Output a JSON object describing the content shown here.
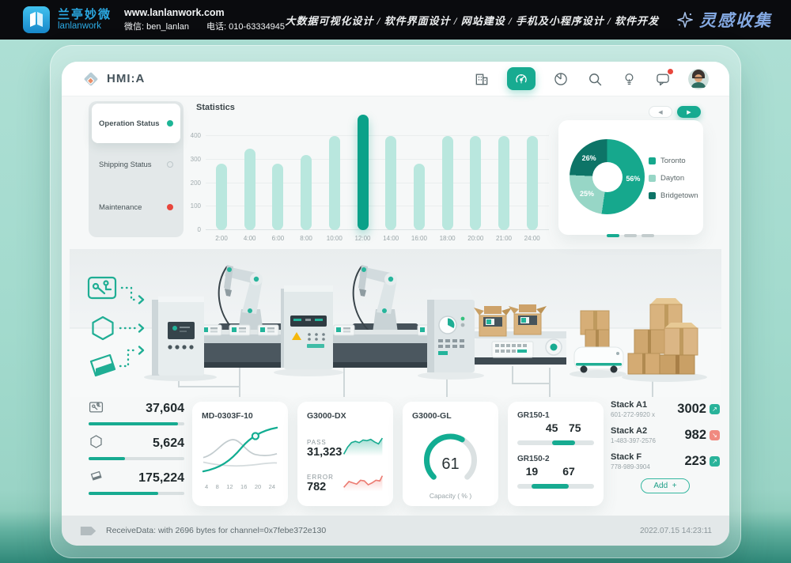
{
  "banner": {
    "brand_cn": "兰亭妙微",
    "brand_en": "lanlanwork",
    "website": "www.lanlanwork.com",
    "wechat": "微信: ben_lanlan",
    "phone": "电话: 010-63334945",
    "services": "大数据可视化设计 / 软件界面设计 / 网站建设 / 手机及小程序设计 / 软件开发",
    "collect": "灵感收集"
  },
  "header": {
    "logo_text": "HMI:A",
    "accent": "#17ab91",
    "icons": [
      "building-icon",
      "dashboard-gauge-icon",
      "pie-chart-icon",
      "search-icon",
      "idea-bulb-icon",
      "chat-icon",
      "avatar"
    ]
  },
  "sidebar": {
    "items": [
      {
        "label": "Operation Status",
        "state": "active"
      },
      {
        "label": "Shipping Status",
        "state": "idle"
      },
      {
        "label": "Maintenance",
        "state": "alert"
      }
    ]
  },
  "statistics": {
    "title": "Statistics",
    "categories": [
      "2:00",
      "4:00",
      "6:00",
      "8:00",
      "10:00",
      "12:00",
      "14:00",
      "16:00",
      "18:00",
      "20:00",
      "21:00",
      "24:00"
    ],
    "values": [
      283,
      345,
      283,
      320,
      400,
      490,
      400,
      283,
      400,
      400,
      400,
      400
    ],
    "highlight_index": 5,
    "y_ticks": [
      400,
      300,
      200,
      100,
      0
    ],
    "y_max": 500,
    "bar_color": "#b9e7de",
    "bar_active_color": "#0aa189"
  },
  "donut": {
    "slices": [
      {
        "label": "Toronto",
        "pct": "56%",
        "value": 56,
        "color": "#16a88d"
      },
      {
        "label": "Dayton",
        "pct": "25%",
        "value": 25,
        "color": "#97d6c6"
      },
      {
        "label": "Bridgetown",
        "pct": "26%",
        "value": 26,
        "color": "#0d7467"
      }
    ]
  },
  "pager": {
    "dash_count": 3,
    "active_dash": 0
  },
  "counters": [
    {
      "icon": "circuit-board-icon",
      "value": "37,604",
      "percent": 93
    },
    {
      "icon": "hexagon-icon",
      "value": "5,624",
      "percent": 38
    },
    {
      "icon": "flask-icon",
      "value": "175,224",
      "percent": 73
    }
  ],
  "machine_cards": {
    "md": {
      "title": "MD-0303F-10",
      "x_labels": [
        "4",
        "8",
        "12",
        "16",
        "20",
        "24"
      ]
    },
    "dx": {
      "title": "G3000-DX",
      "pass_label": "PASS",
      "pass_value": "31,323",
      "error_label": "ERROR",
      "error_value": "782"
    },
    "gauge": {
      "title": "G3000-GL",
      "value": 61,
      "max": 100,
      "caption": "Capacity ( % )"
    },
    "ranges": [
      {
        "label": "GR150-1",
        "low": 45,
        "high": 75
      },
      {
        "label": "GR150-2",
        "low": 19,
        "high": 67
      }
    ]
  },
  "stacks": {
    "items": [
      {
        "name": "Stack A1",
        "code": "601-272-9920 x",
        "value": "3002",
        "trend": "up"
      },
      {
        "name": "Stack A2",
        "code": "1-483-397-2576",
        "value": "982",
        "trend": "down"
      },
      {
        "name": "Stack F",
        "code": "778-989-3904",
        "value": "223",
        "trend": "up"
      }
    ],
    "add_label": "Add",
    "add_plus": "+"
  },
  "status_bar": {
    "message": "ReceiveData: with 2696 bytes for channel=0x7febe372e130",
    "timestamp": "2022.07.15 14:23:11"
  },
  "chart_data": [
    {
      "type": "bar",
      "title": "Statistics",
      "categories": [
        "2:00",
        "4:00",
        "6:00",
        "8:00",
        "10:00",
        "12:00",
        "14:00",
        "16:00",
        "18:00",
        "20:00",
        "21:00",
        "24:00"
      ],
      "values": [
        283,
        345,
        283,
        320,
        400,
        490,
        400,
        283,
        400,
        400,
        400,
        400
      ],
      "ylim": [
        0,
        500
      ],
      "highlight": "12:00"
    },
    {
      "type": "pie",
      "labels": [
        "Toronto",
        "Dayton",
        "Bridgetown"
      ],
      "values": [
        56,
        25,
        26
      ],
      "unit": "%"
    },
    {
      "type": "line",
      "title": "MD-0303F-10",
      "x": [
        4,
        8,
        12,
        16,
        20,
        24
      ]
    },
    {
      "type": "area",
      "title": "G3000-DX PASS",
      "value": 31323
    },
    {
      "type": "area",
      "title": "G3000-DX ERROR",
      "value": 782
    },
    {
      "type": "gauge",
      "title": "G3000-GL Capacity (%)",
      "value": 61,
      "max": 100
    },
    {
      "type": "range",
      "title": "GR150-1",
      "low": 45,
      "high": 75
    },
    {
      "type": "range",
      "title": "GR150-2",
      "low": 19,
      "high": 67
    }
  ]
}
